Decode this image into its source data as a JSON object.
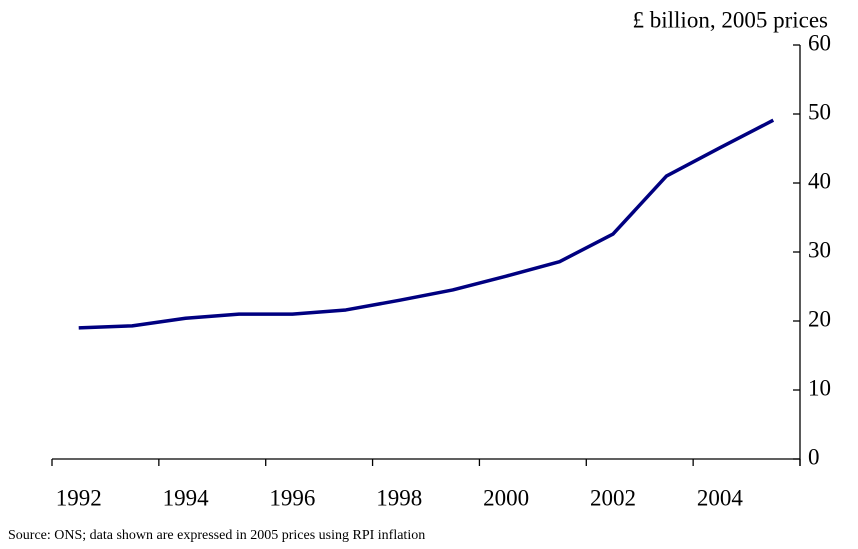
{
  "chart_data": {
    "type": "line",
    "y_label": "£ billion, 2005 prices",
    "source": "Source: ONS; data shown are expressed in 2005 prices using RPI inflation",
    "categories": [
      "1992",
      null,
      "1994",
      null,
      "1996",
      null,
      "1998",
      null,
      "2000",
      null,
      "2002",
      null,
      "2004",
      null
    ],
    "series": [
      {
        "color": "#000080",
        "values": [
          19.0,
          19.3,
          20.4,
          21.0,
          21.0,
          21.6,
          23.0,
          24.5,
          26.5,
          28.6,
          32.6,
          41.0,
          45.1,
          49.1
        ]
      }
    ],
    "ylim": [
      0,
      60
    ],
    "yticks": [
      0,
      10,
      20,
      30,
      40,
      50,
      60
    ]
  }
}
